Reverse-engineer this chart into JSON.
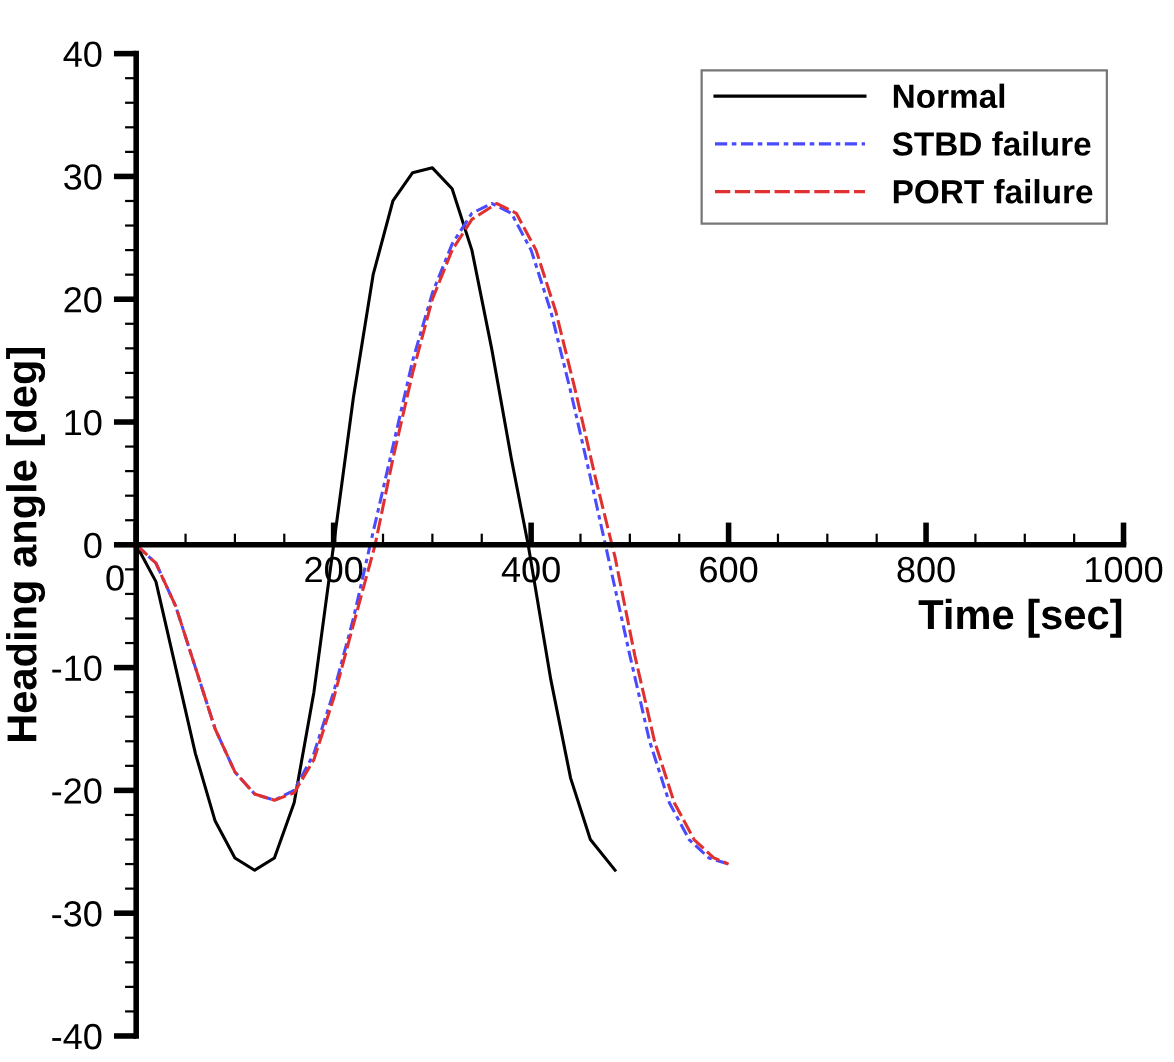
{
  "chart_data": {
    "type": "line",
    "xlabel": "Time [sec]",
    "ylabel": "Heading angle [deg]",
    "xlim": [
      0,
      1000
    ],
    "xticks": [
      0,
      200,
      400,
      600,
      800,
      1000
    ],
    "ylim": [
      -40,
      40
    ],
    "yticks": [
      -40,
      -30,
      -20,
      -10,
      0,
      10,
      20,
      30,
      40
    ],
    "grid": false,
    "legend": "top right",
    "marker": "none",
    "series": [
      {
        "name": "Normal",
        "color": "#000000",
        "line_style": "solid",
        "x": [
          0,
          20,
          40,
          60,
          80,
          100,
          120,
          140,
          160,
          180,
          200,
          220,
          240,
          260,
          280,
          300,
          320,
          340,
          360,
          380,
          397,
          420,
          440,
          460,
          485
        ],
        "values": [
          0,
          -3,
          -10,
          -17,
          -22.5,
          -25.5,
          -26.5,
          -25.5,
          -21,
          -12,
          0,
          12,
          22,
          28,
          30.3,
          30.7,
          29,
          24,
          16,
          7,
          0,
          -11,
          -19,
          -24,
          -26.5
        ]
      },
      {
        "name": "STBD failure",
        "color": "#4a4aff",
        "line_style": "dashdot",
        "x": [
          0,
          20,
          40,
          60,
          80,
          100,
          120,
          140,
          160,
          180,
          200,
          220,
          237,
          260,
          280,
          300,
          320,
          340,
          360,
          380,
          400,
          420,
          440,
          460,
          478,
          500,
          520,
          540,
          560,
          580,
          600
        ],
        "values": [
          0,
          -1.5,
          -5,
          -10,
          -15,
          -18.5,
          -20.3,
          -20.8,
          -20,
          -17,
          -12,
          -6,
          0,
          8,
          15,
          20.5,
          24.5,
          27,
          27.8,
          27,
          24,
          19,
          12.5,
          5.5,
          -1,
          -9,
          -16,
          -21,
          -24,
          -25.5,
          -26
        ]
      },
      {
        "name": "PORT failure",
        "color": "#e03030",
        "line_style": "dashed",
        "x": [
          0,
          20,
          40,
          60,
          80,
          100,
          120,
          140,
          160,
          180,
          200,
          220,
          242,
          260,
          280,
          300,
          320,
          340,
          365,
          385,
          405,
          425,
          445,
          465,
          485,
          505,
          525,
          545,
          565,
          585,
          600
        ],
        "values": [
          0,
          -1.5,
          -5,
          -10,
          -15,
          -18.5,
          -20.3,
          -20.8,
          -20.2,
          -17.5,
          -12.5,
          -6.5,
          0,
          7,
          14,
          20,
          24,
          26.5,
          27.8,
          27,
          24,
          19,
          12.5,
          5.5,
          -1,
          -9,
          -16,
          -21,
          -24,
          -25.5,
          -26
        ]
      }
    ]
  }
}
